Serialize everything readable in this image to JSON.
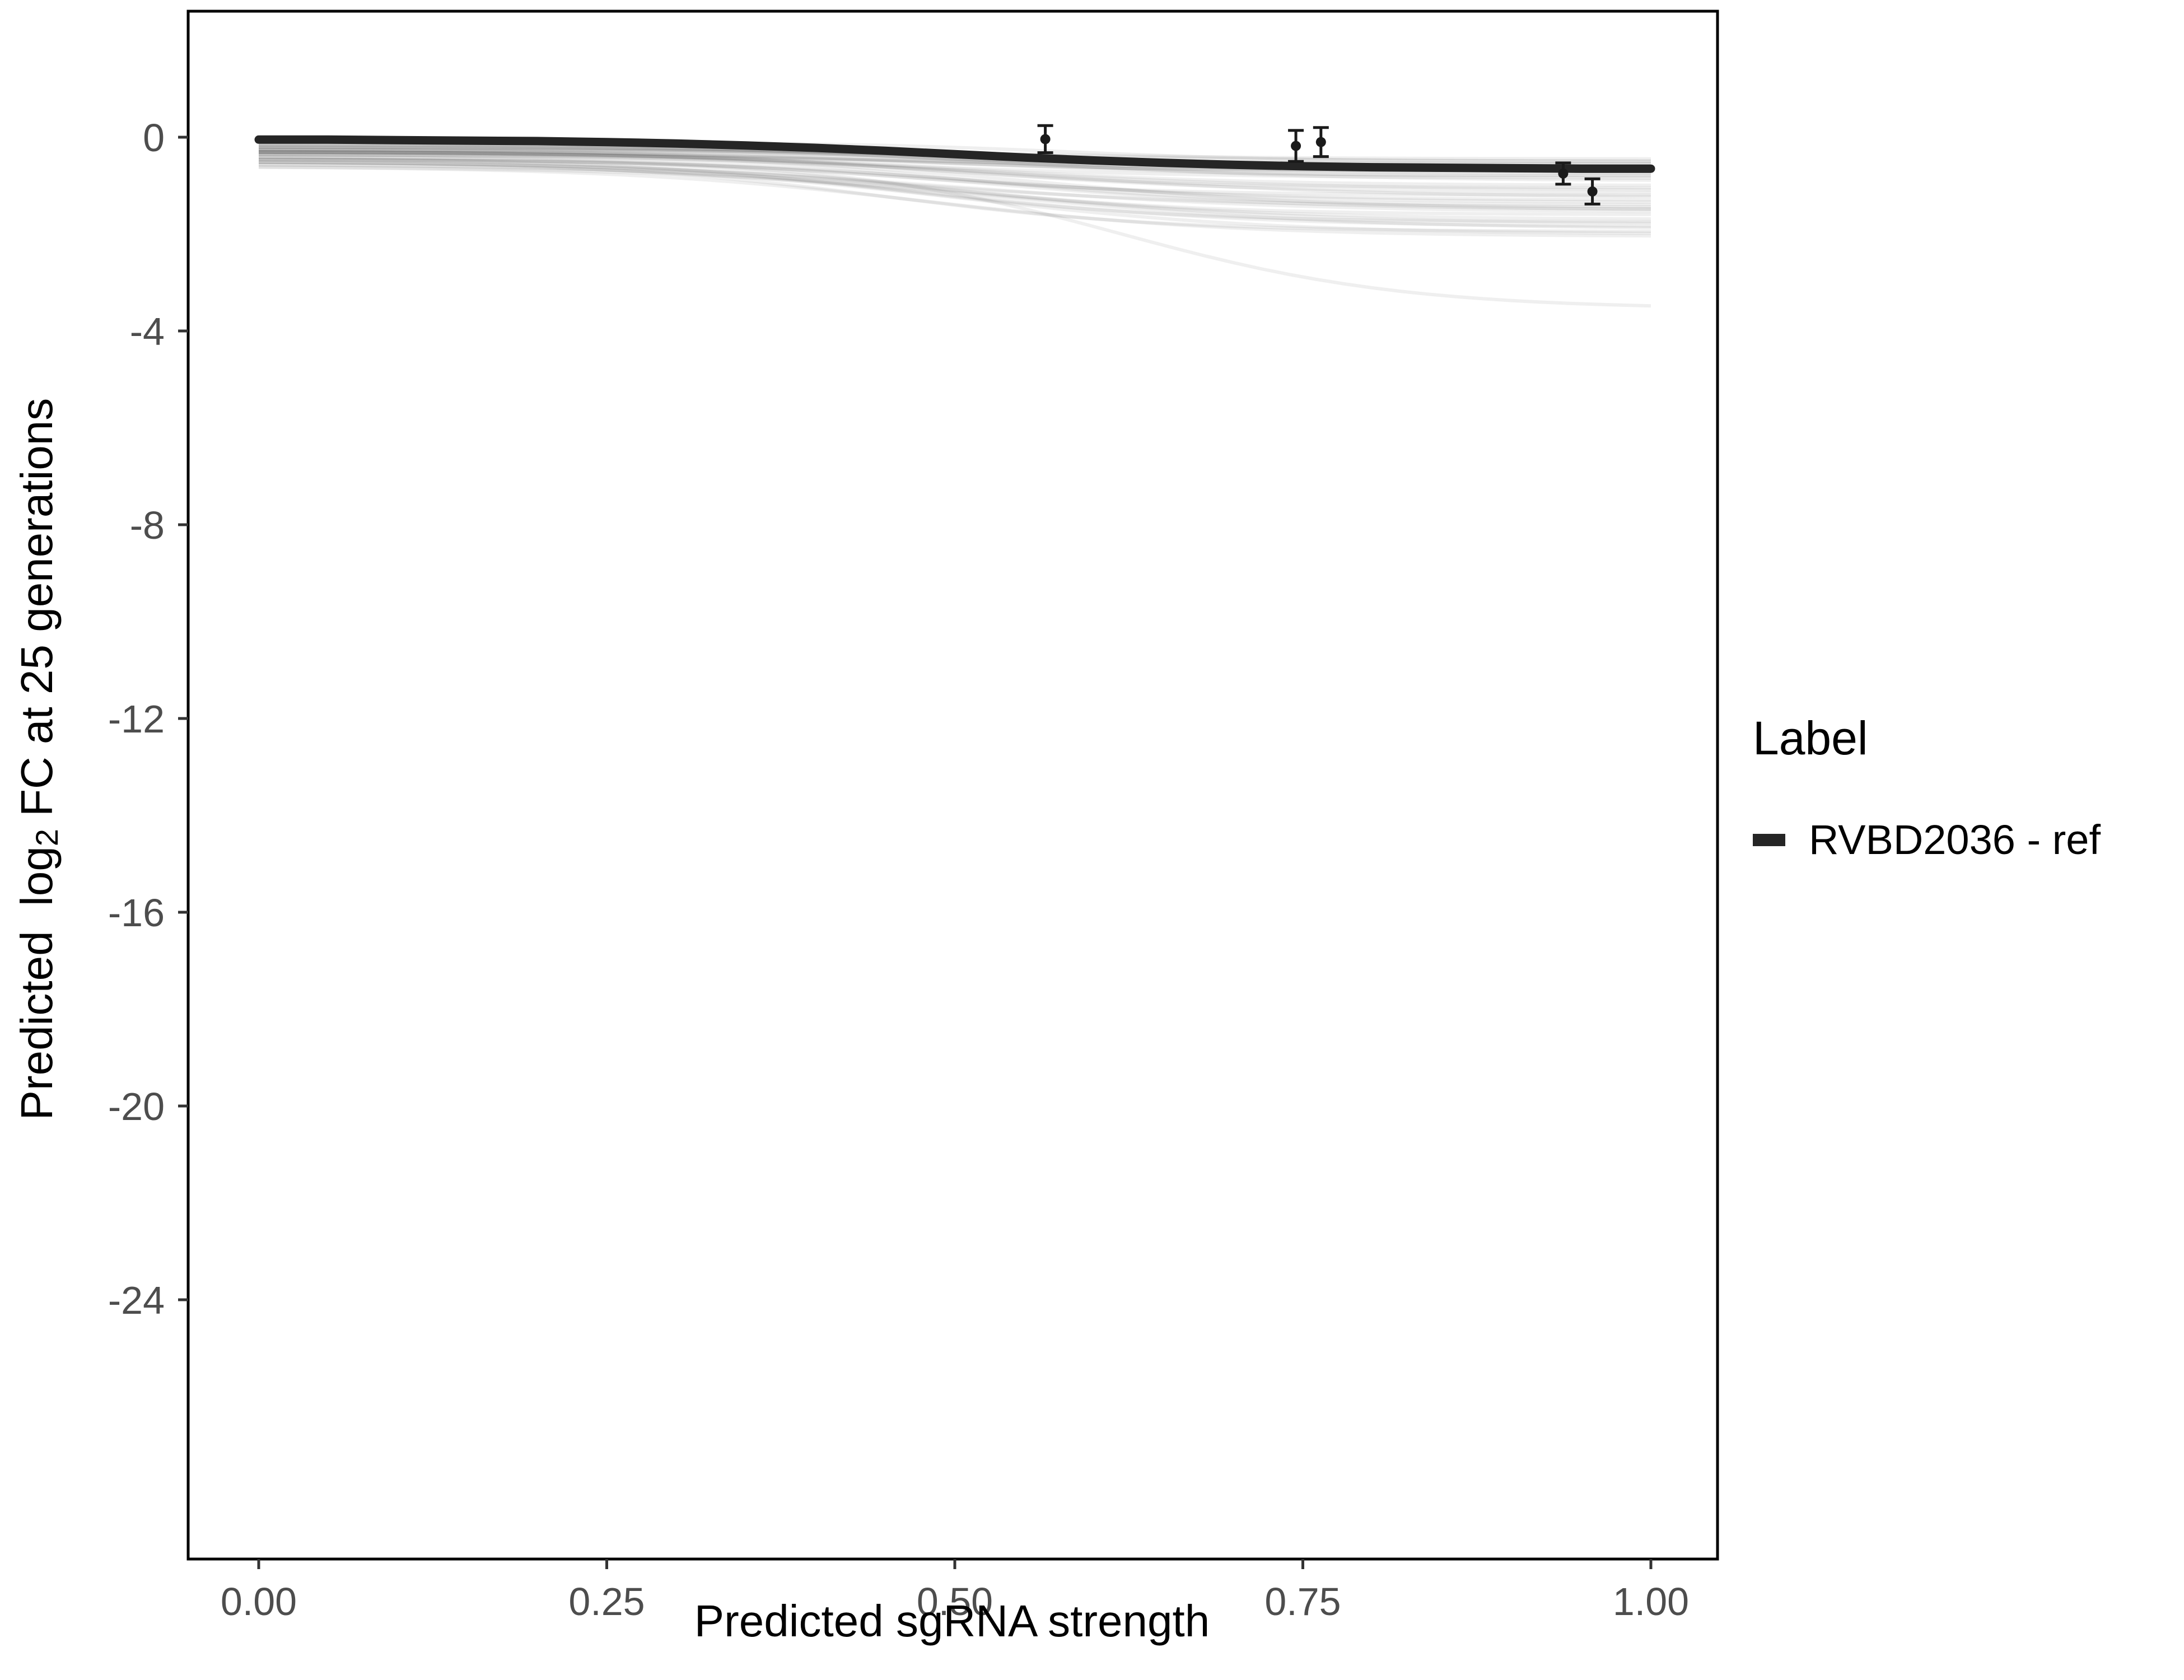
{
  "chart_data": {
    "type": "line",
    "title": "",
    "xlabel": "Predicted sgRNA strength",
    "ylabel": "Predicted log2 FC at 25 generations",
    "ylabel_rich": {
      "prefix": "Predicted  log",
      "sub": "2",
      "suffix": " FC at 25 generations"
    },
    "xlim": [
      0,
      1
    ],
    "ylim": [
      -29.5,
      2.5
    ],
    "grid": false,
    "x_ticks": [
      {
        "value": 0.0,
        "label": "0.00"
      },
      {
        "value": 0.25,
        "label": "0.25"
      },
      {
        "value": 0.5,
        "label": "0.50"
      },
      {
        "value": 0.75,
        "label": "0.75"
      },
      {
        "value": 1.0,
        "label": "1.00"
      }
    ],
    "y_ticks": [
      {
        "value": 0,
        "label": "0"
      },
      {
        "value": -4,
        "label": "-4"
      },
      {
        "value": -8,
        "label": "-8"
      },
      {
        "value": -12,
        "label": "-12"
      },
      {
        "value": -16,
        "label": "-16"
      },
      {
        "value": -20,
        "label": "-20"
      },
      {
        "value": -24,
        "label": "-24"
      }
    ],
    "legend": {
      "title": "Label",
      "position": "right",
      "entries": [
        {
          "label": "RVBD2036 - ref",
          "color": "#252525",
          "type": "line"
        }
      ]
    },
    "reference_series": {
      "name": "RVBD2036 - ref",
      "color": "#252525",
      "x": [
        0,
        0.05,
        0.1,
        0.15,
        0.2,
        0.25,
        0.3,
        0.35,
        0.4,
        0.45,
        0.5,
        0.55,
        0.6,
        0.65,
        0.7,
        0.75,
        0.8,
        0.85,
        0.9,
        0.95,
        1.0
      ],
      "y": [
        -0.05,
        -0.05,
        -0.06,
        -0.07,
        -0.08,
        -0.1,
        -0.13,
        -0.17,
        -0.22,
        -0.28,
        -0.35,
        -0.42,
        -0.48,
        -0.53,
        -0.57,
        -0.6,
        -0.62,
        -0.63,
        -0.64,
        -0.65,
        -0.65
      ]
    },
    "posterior_curves": {
      "description": "faint posterior sample sigmoid curves [start, end, midpoint, steepness]",
      "color": "#1a1a1a",
      "opacity": 0.07,
      "params": [
        [
          -0.15,
          -0.45,
          0.48,
          9
        ],
        [
          -0.2,
          -0.5,
          0.52,
          8
        ],
        [
          -0.12,
          -0.55,
          0.45,
          10
        ],
        [
          -0.25,
          -0.6,
          0.5,
          9
        ],
        [
          -0.18,
          -0.65,
          0.55,
          8
        ],
        [
          -0.3,
          -0.7,
          0.47,
          11
        ],
        [
          -0.22,
          -0.75,
          0.53,
          9
        ],
        [
          -0.14,
          -0.8,
          0.5,
          10
        ],
        [
          -0.28,
          -0.85,
          0.44,
          8
        ],
        [
          -0.2,
          -0.9,
          0.56,
          9
        ],
        [
          -0.35,
          -0.65,
          0.5,
          7
        ],
        [
          -0.1,
          -0.5,
          0.58,
          12
        ],
        [
          -0.24,
          -0.7,
          0.42,
          9
        ],
        [
          -0.3,
          -0.8,
          0.51,
          10
        ],
        [
          -0.16,
          -0.6,
          0.49,
          8
        ],
        [
          -0.26,
          -0.55,
          0.54,
          11
        ],
        [
          -0.2,
          -0.62,
          0.46,
          9
        ],
        [
          -0.32,
          -0.72,
          0.52,
          8
        ],
        [
          -0.3,
          -1.0,
          0.5,
          9
        ],
        [
          -0.25,
          -1.05,
          0.47,
          10
        ],
        [
          -0.35,
          -1.1,
          0.53,
          8
        ],
        [
          -0.28,
          -1.15,
          0.5,
          9
        ],
        [
          -0.4,
          -1.2,
          0.45,
          10
        ],
        [
          -0.3,
          -1.25,
          0.55,
          8
        ],
        [
          -0.35,
          -1.3,
          0.48,
          9
        ],
        [
          -0.45,
          -1.35,
          0.52,
          9
        ],
        [
          -0.3,
          -1.4,
          0.5,
          10
        ],
        [
          -0.4,
          -1.45,
          0.44,
          8
        ],
        [
          -0.35,
          -1.5,
          0.56,
          9
        ],
        [
          -0.5,
          -1.55,
          0.5,
          8
        ],
        [
          -0.4,
          -1.6,
          0.47,
          10
        ],
        [
          -0.45,
          -1.5,
          0.53,
          9
        ],
        [
          -0.5,
          -1.7,
          0.5,
          9
        ],
        [
          -0.45,
          -1.75,
          0.46,
          10
        ],
        [
          -0.55,
          -1.8,
          0.52,
          8
        ],
        [
          -0.5,
          -1.85,
          0.49,
          9
        ],
        [
          -0.6,
          -1.9,
          0.54,
          8
        ],
        [
          -0.5,
          -1.95,
          0.45,
          10
        ],
        [
          -0.55,
          -2.0,
          0.51,
          9
        ],
        [
          -0.6,
          -2.05,
          0.48,
          9
        ],
        [
          -0.45,
          -3.55,
          0.62,
          10
        ]
      ]
    },
    "error_points": {
      "color": "#1a1a1a",
      "points": [
        {
          "x": 0.565,
          "y": -0.04,
          "err": 0.28
        },
        {
          "x": 0.745,
          "y": -0.18,
          "err": 0.32
        },
        {
          "x": 0.763,
          "y": -0.1,
          "err": 0.3
        },
        {
          "x": 0.937,
          "y": -0.75,
          "err": 0.22
        },
        {
          "x": 0.958,
          "y": -1.12,
          "err": 0.26
        }
      ]
    }
  }
}
